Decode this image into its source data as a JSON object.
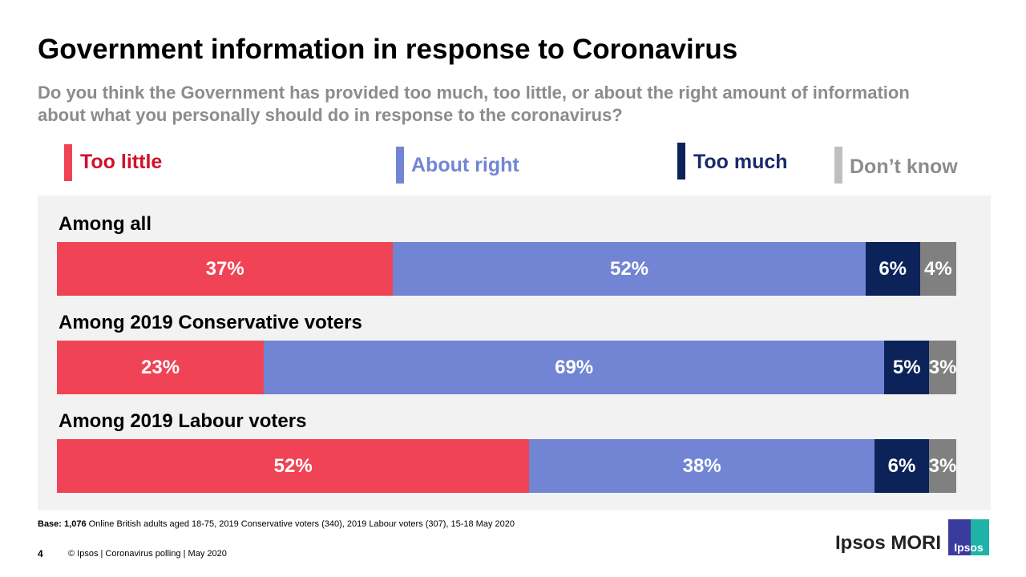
{
  "title": "Government information in response to Coronavirus",
  "subtitle": "Do you think the Government has provided too much, too little, or about the right amount of information about what you personally should do in response to the coronavirus?",
  "legend": [
    {
      "label": "Too little",
      "color": "#f04355",
      "text_color": "#d0102b"
    },
    {
      "label": "About right",
      "color": "#7285d4",
      "text_color": "#7285d4"
    },
    {
      "label": "Too much",
      "color": "#0b2359",
      "text_color": "#1a2a6c"
    },
    {
      "label": "Don’t know",
      "color": "#bfbfbf",
      "text_color": "#8c8c8c"
    }
  ],
  "chart_data": {
    "type": "bar",
    "orientation": "horizontal",
    "stacked": true,
    "categories": [
      "Among all",
      "Among 2019 Conservative voters",
      "Among 2019 Labour voters"
    ],
    "series": [
      {
        "name": "Too little",
        "color": "#f04355",
        "values": [
          37,
          23,
          52
        ]
      },
      {
        "name": "About right",
        "color": "#7285d4",
        "values": [
          52,
          69,
          38
        ]
      },
      {
        "name": "Too much",
        "color": "#0b2359",
        "values": [
          6,
          5,
          6
        ]
      },
      {
        "name": "Don’t know",
        "color": "#808080",
        "values": [
          4,
          3,
          3
        ]
      }
    ],
    "value_suffix": "%"
  },
  "base": {
    "label": "Base:",
    "count": "1,076",
    "text": "Online British adults aged 18-75, 2019 Conservative voters (340), 2019 Labour voters (307), 15-18 May 2020"
  },
  "footer": {
    "page": "4",
    "text": "© Ipsos | Coronavirus polling | May 2020"
  },
  "logo": {
    "text": "Ipsos MORI",
    "badge": "Ipsos"
  }
}
